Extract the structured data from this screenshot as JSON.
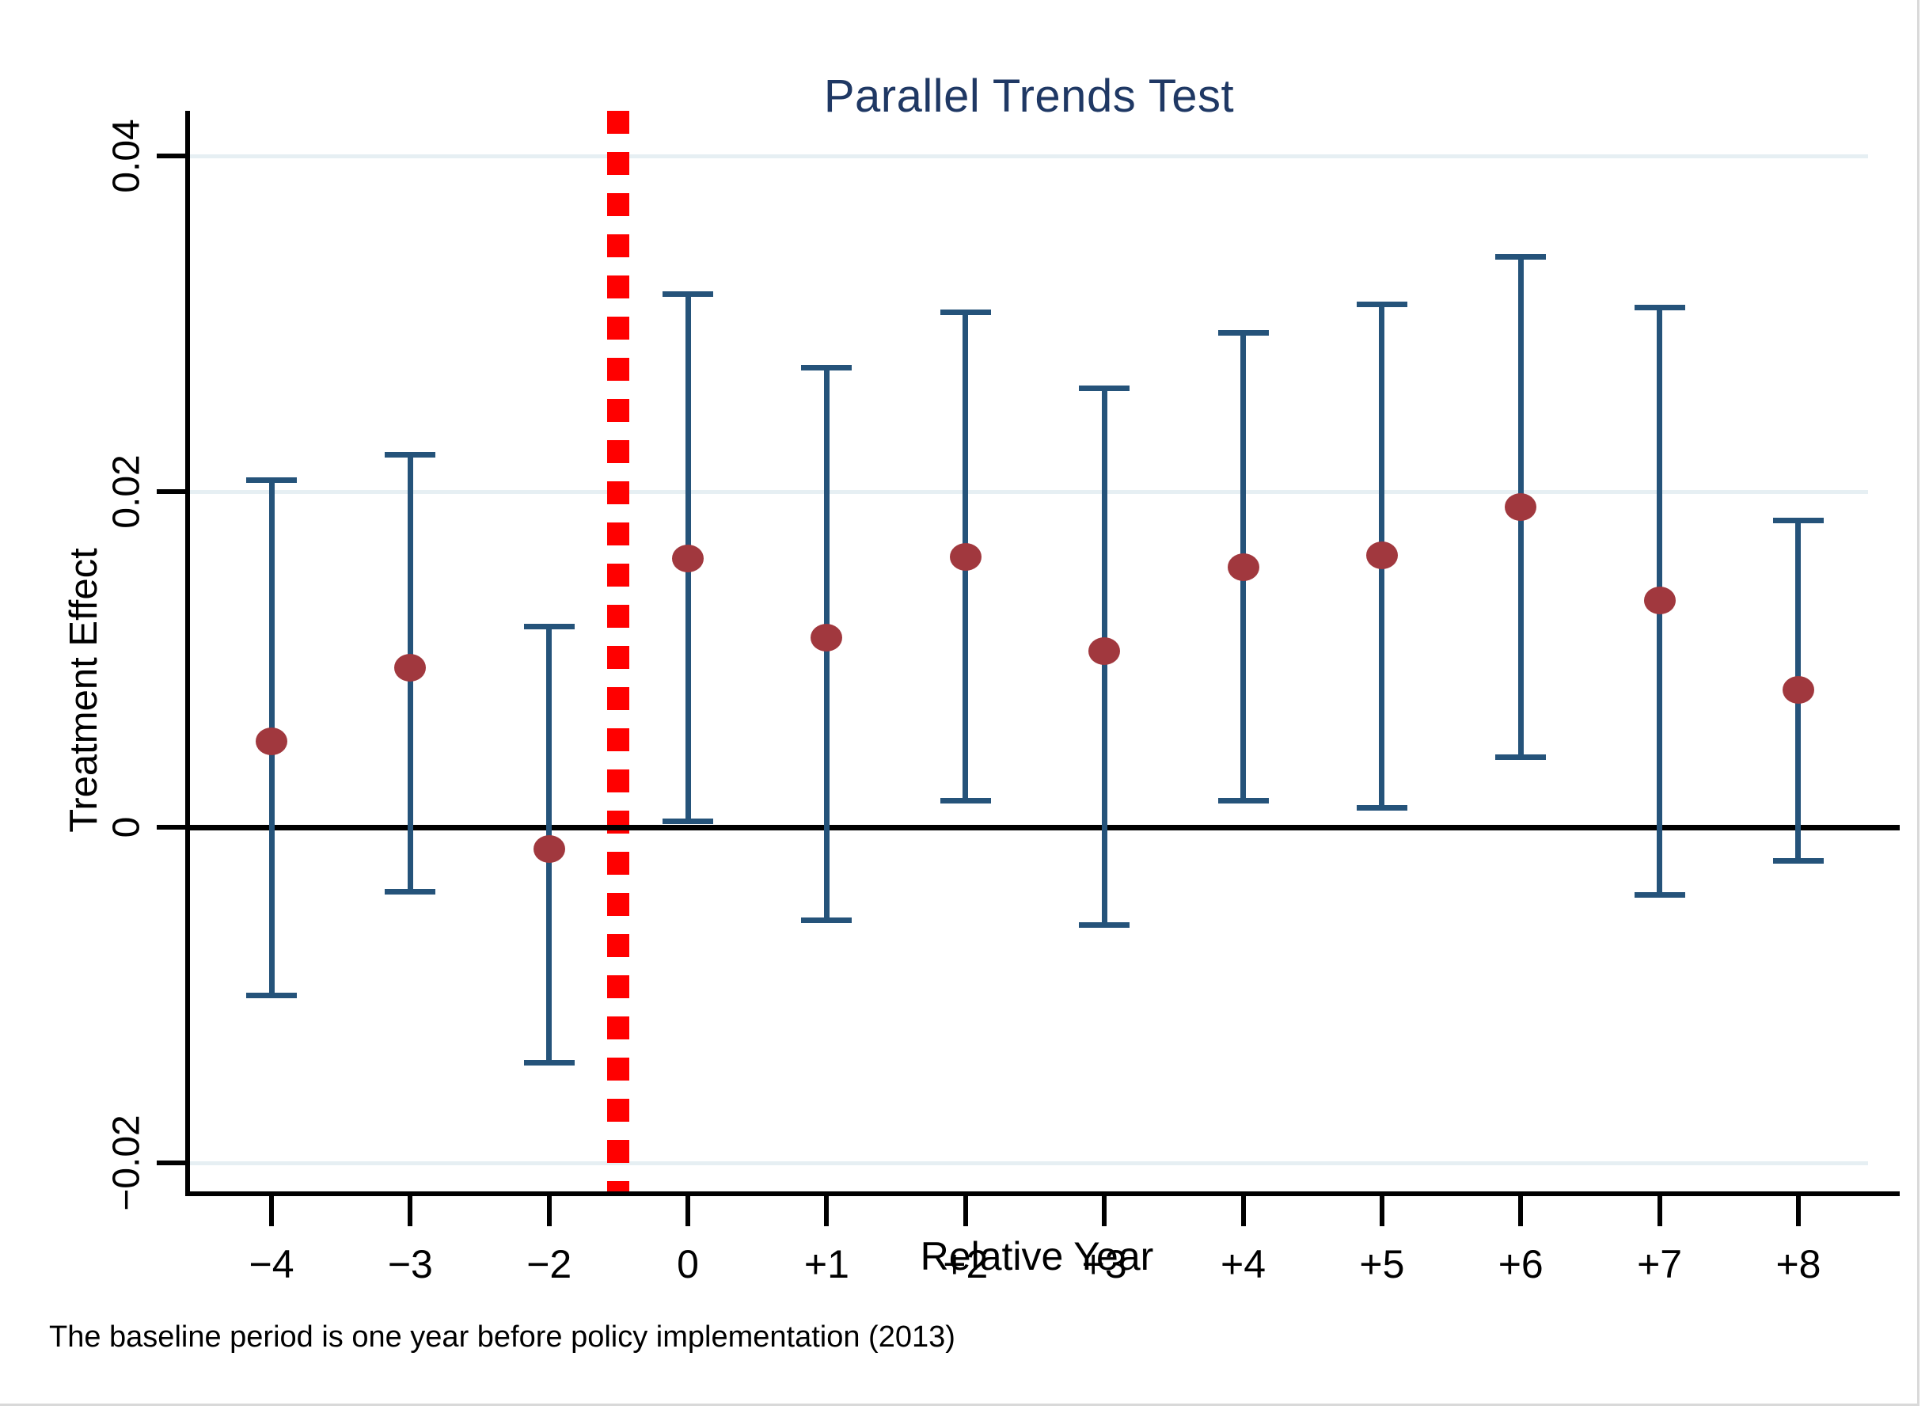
{
  "page": {
    "background": "#ffffff",
    "frame_color": "#d9d9d9"
  },
  "colors": {
    "title": "#1F3864",
    "error_bar": "#25537A",
    "point_marker": "#A1383E",
    "reference_line": "#FF0000",
    "gridline": "#E6EFF3",
    "axis": "#000000"
  },
  "chart_data": {
    "type": "scatter",
    "subtype": "error-bar-event-study",
    "title": "Parallel Trends Test",
    "xlabel": "Relative Year",
    "ylabel": "Treatment Effect",
    "note": "The baseline period is one year before policy implementation (2013)",
    "categories": [
      "−4",
      "−3",
      "−2",
      "0",
      "+1",
      "+2",
      "+3",
      "+4",
      "+5",
      "+6",
      "+7",
      "+8"
    ],
    "series": [
      {
        "name": "Treatment Effect",
        "points": [
          {
            "x": "−4",
            "estimate": 0.0051,
            "ci_low": -0.01,
            "ci_high": 0.0207
          },
          {
            "x": "−3",
            "estimate": 0.0095,
            "ci_low": -0.0038,
            "ci_high": 0.0222
          },
          {
            "x": "−2",
            "estimate": -0.0013,
            "ci_low": -0.014,
            "ci_high": 0.012
          },
          {
            "x": "0",
            "estimate": 0.016,
            "ci_low": 0.0004,
            "ci_high": 0.0318
          },
          {
            "x": "+1",
            "estimate": 0.0113,
            "ci_low": -0.0055,
            "ci_high": 0.0274
          },
          {
            "x": "+2",
            "estimate": 0.0161,
            "ci_low": 0.0016,
            "ci_high": 0.0307
          },
          {
            "x": "+3",
            "estimate": 0.0105,
            "ci_low": -0.0058,
            "ci_high": 0.0262
          },
          {
            "x": "+4",
            "estimate": 0.0155,
            "ci_low": 0.0016,
            "ci_high": 0.0295
          },
          {
            "x": "+5",
            "estimate": 0.0162,
            "ci_low": 0.0012,
            "ci_high": 0.0312
          },
          {
            "x": "+6",
            "estimate": 0.0191,
            "ci_low": 0.0042,
            "ci_high": 0.034
          },
          {
            "x": "+7",
            "estimate": 0.0135,
            "ci_low": -0.004,
            "ci_high": 0.031
          },
          {
            "x": "+8",
            "estimate": 0.0082,
            "ci_low": -0.002,
            "ci_high": 0.0183
          }
        ]
      }
    ],
    "yticks": [
      {
        "label": "0.04",
        "value": 0.04
      },
      {
        "label": "0.02",
        "value": 0.02
      },
      {
        "label": "0",
        "value": 0
      },
      {
        "label": "−0.02",
        "value": -0.02
      }
    ],
    "ylim": [
      -0.022,
      0.043
    ],
    "grid": true,
    "zero_line": true,
    "legend_position": "none",
    "reference_line": {
      "style": "dashed-vertical",
      "between_categories": [
        "−2",
        "0"
      ],
      "slot": 2.5
    }
  }
}
